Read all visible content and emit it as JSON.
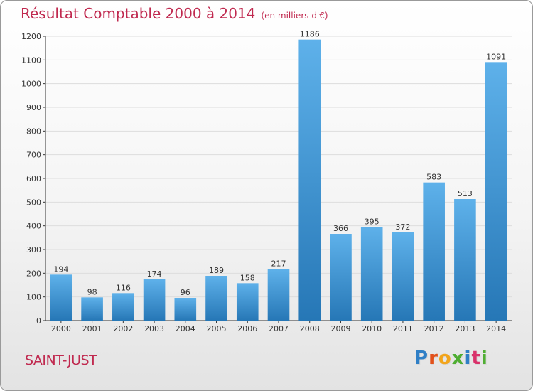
{
  "title": "Résultat Comptable 2000 à 2014",
  "subtitle": "(en milliers d'€)",
  "location": "SAINT-JUST",
  "logo": {
    "text": "Proxiti",
    "letters": [
      {
        "ch": "P",
        "color": "#2f7fc6"
      },
      {
        "ch": "r",
        "color": "#e2511b"
      },
      {
        "ch": "o",
        "color": "#f2a51c"
      },
      {
        "ch": "x",
        "color": "#4fae32"
      },
      {
        "ch": "i",
        "color": "#2f7fc6"
      },
      {
        "ch": "t",
        "color": "#d9316a"
      },
      {
        "ch": "i",
        "color": "#4fae32"
      }
    ]
  },
  "colors": {
    "bar_light": "#5eb1ea",
    "bar_dark": "#2677b6",
    "title": "#c0294f",
    "grid": "#dddddd",
    "axis": "#333333"
  },
  "chart_data": {
    "type": "bar",
    "title": "Résultat Comptable 2000 à 2014",
    "subtitle": "(en milliers d'€)",
    "categories": [
      "2000",
      "2001",
      "2002",
      "2003",
      "2004",
      "2005",
      "2006",
      "2007",
      "2008",
      "2009",
      "2010",
      "2011",
      "2012",
      "2013",
      "2014"
    ],
    "values": [
      194,
      98,
      116,
      174,
      96,
      189,
      158,
      217,
      1186,
      366,
      395,
      372,
      583,
      513,
      1091
    ],
    "ylim": [
      0,
      1200
    ],
    "yticks": [
      0,
      100,
      200,
      300,
      400,
      500,
      600,
      700,
      800,
      900,
      1000,
      1100,
      1200
    ],
    "grid": true,
    "data_labels": true
  }
}
